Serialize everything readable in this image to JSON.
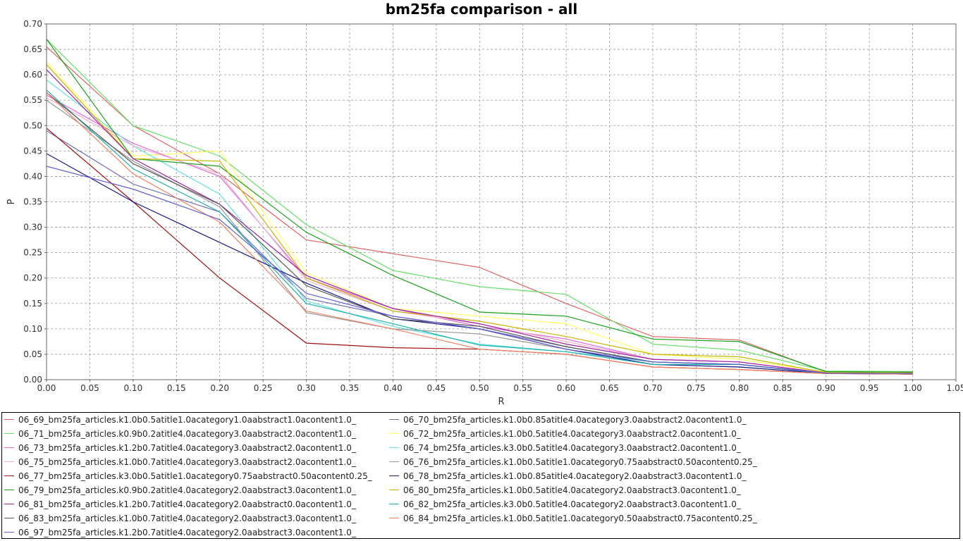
{
  "chart_data": {
    "type": "line",
    "title": "bm25fa comparison - all",
    "xlabel": "R",
    "ylabel": "P",
    "xlim": [
      0,
      1.05
    ],
    "ylim": [
      0,
      0.7
    ],
    "xticks": [
      "0.00",
      "0.05",
      "0.10",
      "0.15",
      "0.20",
      "0.25",
      "0.30",
      "0.35",
      "0.40",
      "0.45",
      "0.50",
      "0.55",
      "0.60",
      "0.65",
      "0.70",
      "0.75",
      "0.80",
      "0.85",
      "0.90",
      "0.95",
      "1.00",
      "1.05"
    ],
    "yticks": [
      "0.00",
      "0.05",
      "0.10",
      "0.15",
      "0.20",
      "0.25",
      "0.30",
      "0.35",
      "0.40",
      "0.45",
      "0.50",
      "0.55",
      "0.60",
      "0.65",
      "0.70"
    ],
    "grid": true,
    "legend_position": "bottom",
    "x": [
      0.0,
      0.1,
      0.2,
      0.3,
      0.4,
      0.5,
      0.6,
      0.7,
      0.8,
      0.9,
      1.0
    ],
    "series": [
      {
        "name": "06_69_bm25fa_articles.k1.0b0.5atitle1.0acategory1.0aabstract1.0acontent1.0_",
        "color": "#e06666",
        "values": [
          0.655,
          0.5,
          0.405,
          0.275,
          0.248,
          0.221,
          0.15,
          0.085,
          0.078,
          0.015,
          0.014
        ]
      },
      {
        "name": "06_70_bm25fa_articles.k1.0b0.85atitle4.0acategory3.0aabstract2.0acontent1.0_",
        "color": "#7070c0",
        "values": [
          0.49,
          0.385,
          0.33,
          0.16,
          0.125,
          0.1,
          0.065,
          0.035,
          0.03,
          0.013,
          0.012
        ]
      },
      {
        "name": "06_71_bm25fa_articles.k0.9b0.2atitle4.0acategory3.0aabstract2.0acontent1.0_",
        "color": "#66e066",
        "values": [
          0.67,
          0.5,
          0.44,
          0.305,
          0.215,
          0.183,
          0.168,
          0.07,
          0.058,
          0.017,
          0.016
        ]
      },
      {
        "name": "06_72_bm25fa_articles.k1.0b0.5atitle4.0acategory3.0aabstract2.0acontent1.0_",
        "color": "#ffff66",
        "values": [
          0.625,
          0.44,
          0.45,
          0.21,
          0.14,
          0.125,
          0.11,
          0.05,
          0.04,
          0.015,
          0.013
        ]
      },
      {
        "name": "06_73_bm25fa_articles.k1.2b0.7atitle4.0acategory3.0aabstract2.0acontent1.0_",
        "color": "#e066e0",
        "values": [
          0.56,
          0.465,
          0.4,
          0.2,
          0.14,
          0.105,
          0.08,
          0.04,
          0.035,
          0.013,
          0.012
        ]
      },
      {
        "name": "06_74_bm25fa_articles.k3.0b0.5atitle4.0acategory3.0aabstract2.0acontent1.0_",
        "color": "#66e0e0",
        "values": [
          0.59,
          0.46,
          0.365,
          0.155,
          0.105,
          0.07,
          0.055,
          0.035,
          0.03,
          0.012,
          0.012
        ]
      },
      {
        "name": "06_75_bm25fa_articles.k1.0b0.7atitle4.0acategory3.0aabstract2.0acontent1.0_",
        "color": "#f0b0d0",
        "values": [
          0.555,
          0.46,
          0.405,
          0.195,
          0.135,
          0.11,
          0.075,
          0.04,
          0.035,
          0.013,
          0.012
        ]
      },
      {
        "name": "06_76_bm25fa_articles.k1.0b0.5atitle1.0acategory0.75aabstract0.50acontent0.25_",
        "color": "#999999",
        "values": [
          0.55,
          0.43,
          0.34,
          0.132,
          0.1,
          0.09,
          0.06,
          0.03,
          0.025,
          0.012,
          0.011
        ]
      },
      {
        "name": "06_77_bm25fa_articles.k3.0b0.5atitle1.0acategory0.75aabstract0.50acontent0.25_",
        "color": "#a01010",
        "values": [
          0.495,
          0.35,
          0.2,
          0.072,
          0.063,
          0.06,
          0.05,
          0.025,
          0.02,
          0.012,
          0.011
        ]
      },
      {
        "name": "06_78_bm25fa_articles.k1.0b0.85atitle4.0acategory2.0aabstract3.0acontent1.0_",
        "color": "#1a1a8a",
        "values": [
          0.445,
          0.35,
          0.27,
          0.19,
          0.12,
          0.1,
          0.06,
          0.03,
          0.025,
          0.012,
          0.011
        ]
      },
      {
        "name": "06_79_bm25fa_articles.k0.9b0.2atitle4.0acategory2.0aabstract3.0acontent1.0_",
        "color": "#1aa01a",
        "values": [
          0.67,
          0.435,
          0.42,
          0.29,
          0.205,
          0.133,
          0.125,
          0.08,
          0.075,
          0.016,
          0.015
        ]
      },
      {
        "name": "06_80_bm25fa_articles.k1.0b0.5atitle4.0acategory2.0aabstract3.0acontent1.0_",
        "color": "#c8b400",
        "values": [
          0.62,
          0.435,
          0.43,
          0.2,
          0.135,
          0.115,
          0.085,
          0.05,
          0.045,
          0.014,
          0.013
        ]
      },
      {
        "name": "06_81_bm25fa_articles.k1.2b0.7atitle4.0acategory2.0aabstract0.0acontent1.0_",
        "color": "#a020a0",
        "values": [
          0.61,
          0.435,
          0.345,
          0.205,
          0.14,
          0.11,
          0.07,
          0.04,
          0.035,
          0.013,
          0.012
        ]
      },
      {
        "name": "06_82_bm25fa_articles.k3.0b0.5atitle4.0acategory2.0aabstract3.0acontent1.0_",
        "color": "#20b0b0",
        "values": [
          0.57,
          0.415,
          0.33,
          0.15,
          0.11,
          0.068,
          0.055,
          0.03,
          0.03,
          0.012,
          0.012
        ]
      },
      {
        "name": "06_83_bm25fa_articles.k1.0b0.7atitle4.0acategory2.0aabstract3.0acontent1.0_",
        "color": "#555555",
        "values": [
          0.565,
          0.425,
          0.345,
          0.185,
          0.12,
          0.105,
          0.065,
          0.035,
          0.03,
          0.013,
          0.012
        ]
      },
      {
        "name": "06_84_bm25fa_articles.k1.0b0.5atitle1.0acategory0.50aabstract0.75acontent0.25_",
        "color": "#f08060",
        "values": [
          0.565,
          0.405,
          0.31,
          0.135,
          0.1,
          0.06,
          0.05,
          0.025,
          0.02,
          0.012,
          0.011
        ]
      },
      {
        "name": "06_97_bm25fa_articles.k1.2b0.7atitle4.0acategory2.0aabstract3.0acontent1.0_",
        "color": "#6060d0",
        "values": [
          0.42,
          0.375,
          0.315,
          0.17,
          0.125,
          0.1,
          0.06,
          0.035,
          0.03,
          0.013,
          0.012
        ]
      }
    ]
  }
}
